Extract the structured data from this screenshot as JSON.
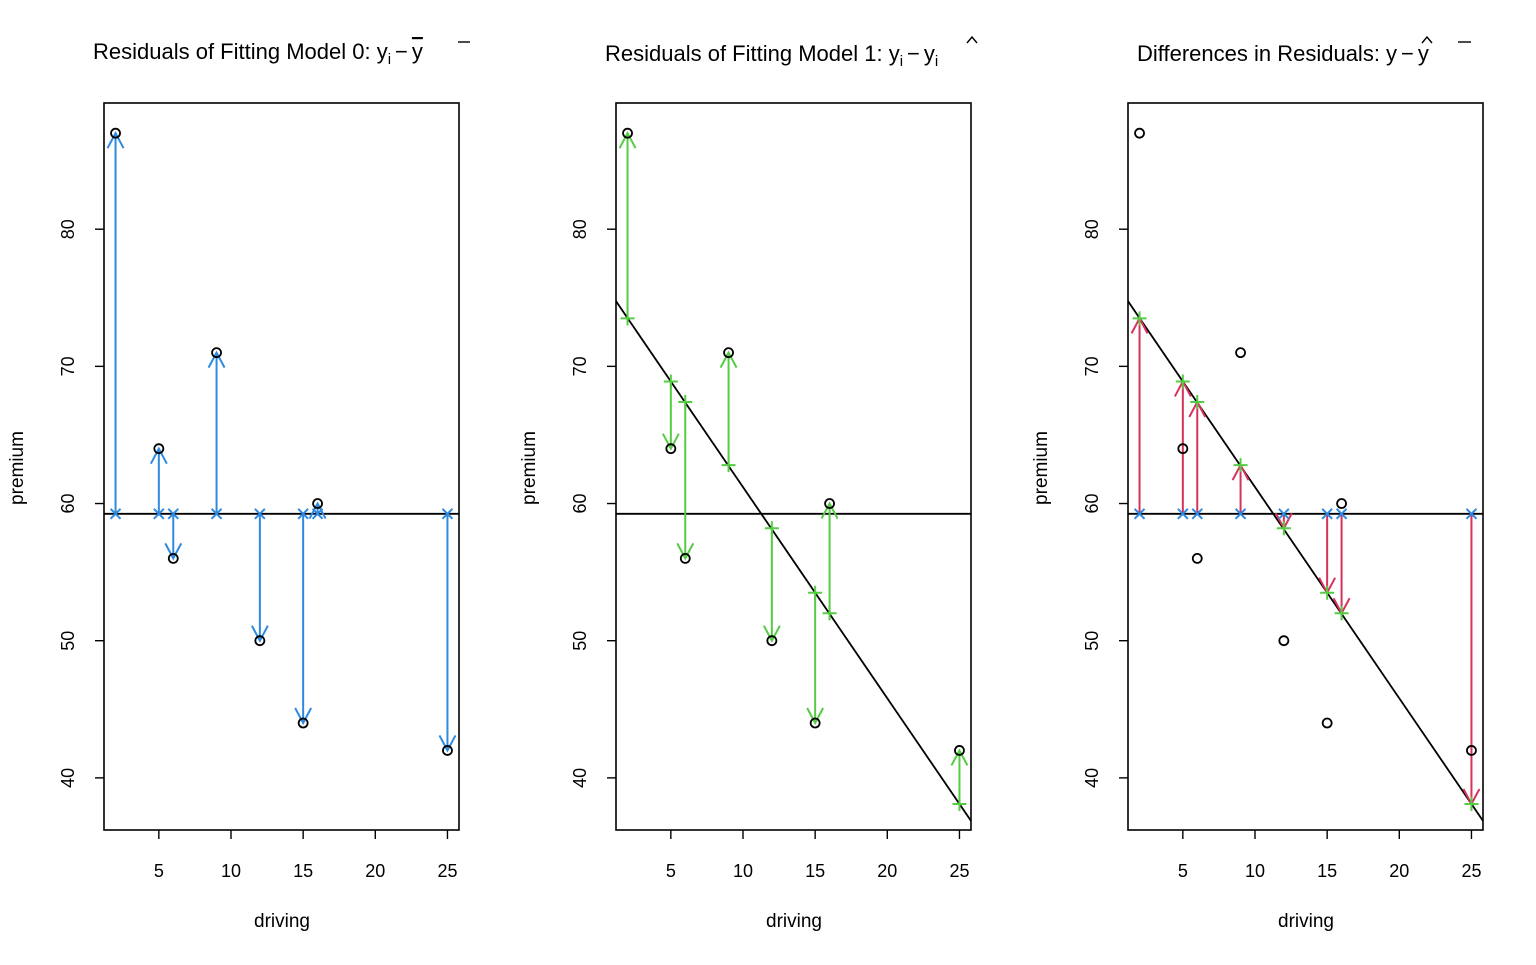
{
  "colors": {
    "model0": "#2e8ae0",
    "model1": "#55cc44",
    "difference": "#d6335c",
    "points": "#000000",
    "lines": "#000000"
  },
  "chart_data": [
    {
      "type": "scatter",
      "title": "Residuals of Fitting Model 0: ",
      "title_math": {
        "base": "y",
        "sub": "i",
        "minus": "−",
        "rhs": "y"
      },
      "xlabel": "driving",
      "ylabel": "premium",
      "xlim": [
        1.2,
        25.8
      ],
      "ylim": [
        36.2,
        89.2
      ],
      "xticks": [
        5,
        10,
        15,
        20,
        25
      ],
      "yticks": [
        40,
        50,
        60,
        70,
        80
      ],
      "x": [
        2,
        5,
        6,
        9,
        12,
        15,
        16,
        25
      ],
      "y": [
        87,
        64,
        56,
        71,
        50,
        44,
        60,
        42
      ],
      "mean_y": 59.25,
      "show_regression_line": false,
      "segments": "observed_vs_mean"
    },
    {
      "type": "scatter",
      "title": "Residuals of Fitting Model 1: ",
      "title_math": {
        "base": "y",
        "sub": "i",
        "minus": "−",
        "rhs": "y",
        "rhs_sub": "i"
      },
      "xlabel": "driving",
      "ylabel": "premium",
      "xlim": [
        1.2,
        25.8
      ],
      "ylim": [
        36.2,
        89.2
      ],
      "xticks": [
        5,
        10,
        15,
        20,
        25
      ],
      "yticks": [
        40,
        50,
        60,
        70,
        80
      ],
      "x": [
        2,
        5,
        6,
        9,
        12,
        15,
        16,
        25
      ],
      "y": [
        87,
        64,
        56,
        71,
        50,
        44,
        60,
        42
      ],
      "y_fitted": [
        73.5,
        68.9,
        67.4,
        62.8,
        58.2,
        53.5,
        52.0,
        38.1
      ],
      "mean_y": 59.25,
      "show_regression_line": true,
      "regression_line": {
        "intercept": 76.6,
        "slope": -1.54
      },
      "segments": "observed_vs_fitted"
    },
    {
      "type": "scatter",
      "title": "Differences in Residuals: ",
      "title_math": {
        "base": "y",
        "minus": "−",
        "rhs": "y"
      },
      "xlabel": "driving",
      "ylabel": "premium",
      "xlim": [
        1.2,
        25.8
      ],
      "ylim": [
        36.2,
        89.2
      ],
      "xticks": [
        5,
        10,
        15,
        20,
        25
      ],
      "yticks": [
        40,
        50,
        60,
        70,
        80
      ],
      "x": [
        2,
        5,
        6,
        9,
        12,
        15,
        16,
        25
      ],
      "y": [
        87,
        64,
        56,
        71,
        50,
        44,
        60,
        42
      ],
      "y_fitted": [
        73.5,
        68.9,
        67.4,
        62.8,
        58.2,
        53.5,
        52.0,
        38.1
      ],
      "mean_y": 59.25,
      "show_regression_line": true,
      "regression_line": {
        "intercept": 76.6,
        "slope": -1.54
      },
      "segments": "fitted_vs_mean"
    }
  ]
}
